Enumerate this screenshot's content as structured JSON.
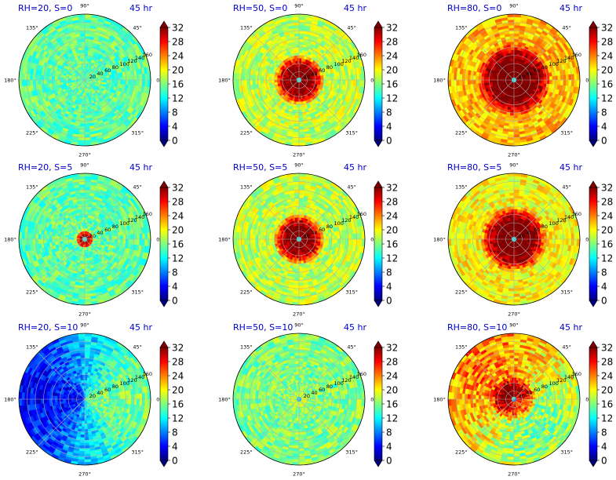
{
  "figure": {
    "panel_time_label": "45 hr",
    "angle_tick_labels": [
      "90°",
      "45°",
      "0°",
      "315°",
      "270°",
      "225°",
      "180°",
      "135°"
    ],
    "radial_tick_labels": [
      "20",
      "40",
      "60",
      "80",
      "100",
      "120",
      "140",
      "160"
    ],
    "colorbar_tick_labels": [
      "0",
      "4",
      "8",
      "12",
      "16",
      "20",
      "24",
      "28",
      "32"
    ],
    "colors": {
      "title_blue": "#0000cc",
      "jet": [
        "#00007f",
        "#0000ff",
        "#007fff",
        "#00ffff",
        "#7fff7f",
        "#ffff00",
        "#ff7f00",
        "#ff0000",
        "#7f0000"
      ]
    }
  },
  "chart_data": [
    {
      "type": "heatmap",
      "projection": "polar",
      "title": "RH=20, S=0",
      "time": "45 hr",
      "rlim": [
        0,
        160
      ],
      "clim": [
        0,
        32
      ],
      "colormap": "jet",
      "colorbar_extend": "both",
      "grid": true,
      "pattern": "weak broad field ~14-18, no organized core",
      "core_radius": 0,
      "core_value": 14,
      "ring_value": 14,
      "ring_width": 0,
      "background": 15,
      "noise": 3
    },
    {
      "type": "heatmap",
      "projection": "polar",
      "title": "RH=50, S=0",
      "time": "45 hr",
      "rlim": [
        0,
        160
      ],
      "clim": [
        0,
        32
      ],
      "colormap": "jet",
      "colorbar_extend": "both",
      "grid": true,
      "pattern": "intense core ring ~32 out to r≈60, clear eye",
      "core_radius": 8,
      "core_value": 12,
      "ring_value": 33,
      "ring_width": 55,
      "background": 18,
      "noise": 3
    },
    {
      "type": "heatmap",
      "projection": "polar",
      "title": "RH=80, S=0",
      "time": "45 hr",
      "rlim": [
        0,
        160
      ],
      "clim": [
        0,
        32
      ],
      "colormap": "jet",
      "colorbar_extend": "both",
      "grid": true,
      "pattern": "very large intense core ~32 out to r≈90, small eye",
      "core_radius": 7,
      "core_value": 12,
      "ring_value": 34,
      "ring_width": 85,
      "background": 22,
      "noise": 3
    },
    {
      "type": "heatmap",
      "projection": "polar",
      "title": "RH=20, S=5",
      "time": "45 hr",
      "rlim": [
        0,
        160
      ],
      "clim": [
        0,
        32
      ],
      "colormap": "jet",
      "colorbar_extend": "both",
      "grid": true,
      "pattern": "small ring ~28 near r≈15",
      "core_radius": 6,
      "core_value": 12,
      "ring_value": 30,
      "ring_width": 18,
      "background": 15,
      "noise": 3
    },
    {
      "type": "heatmap",
      "projection": "polar",
      "title": "RH=50, S=5",
      "time": "45 hr",
      "rlim": [
        0,
        160
      ],
      "clim": [
        0,
        32
      ],
      "colormap": "jet",
      "colorbar_extend": "both",
      "grid": true,
      "pattern": "strong core ~32 out to r≈60, elongated eye",
      "core_radius": 9,
      "core_value": 12,
      "ring_value": 33,
      "ring_width": 55,
      "background": 18,
      "noise": 3
    },
    {
      "type": "heatmap",
      "projection": "polar",
      "title": "RH=80, S=5",
      "time": "45 hr",
      "rlim": [
        0,
        160
      ],
      "clim": [
        0,
        32
      ],
      "colormap": "jet",
      "colorbar_extend": "both",
      "grid": true,
      "pattern": "large intense core ~32 out to r≈80",
      "core_radius": 7,
      "core_value": 12,
      "ring_value": 34,
      "ring_width": 75,
      "background": 20,
      "noise": 3
    },
    {
      "type": "heatmap",
      "projection": "polar",
      "title": "RH=20, S=10",
      "time": "45 hr",
      "rlim": [
        0,
        160
      ],
      "clim": [
        0,
        32
      ],
      "colormap": "jet",
      "colorbar_extend": "both",
      "grid": true,
      "pattern": "low values ~4-8 on west side, ~14 on east side",
      "core_radius": 0,
      "core_value": 8,
      "ring_value": 8,
      "ring_width": 0,
      "background": 10,
      "noise": 3
    },
    {
      "type": "heatmap",
      "projection": "polar",
      "title": "RH=50, S=10",
      "time": "45 hr",
      "rlim": [
        0,
        160
      ],
      "clim": [
        0,
        32
      ],
      "colormap": "jet",
      "colorbar_extend": "both",
      "grid": true,
      "pattern": "disorganized field ~16-20, low center",
      "core_radius": 8,
      "core_value": 10,
      "ring_value": 18,
      "ring_width": 20,
      "background": 16,
      "noise": 3
    },
    {
      "type": "heatmap",
      "projection": "polar",
      "title": "RH=80, S=10",
      "time": "45 hr",
      "rlim": [
        0,
        160
      ],
      "clim": [
        0,
        32
      ],
      "colormap": "jet",
      "colorbar_extend": "both",
      "grid": true,
      "pattern": "asymmetric strong ~28-32 band on west/north side",
      "core_radius": 10,
      "core_value": 10,
      "ring_value": 30,
      "ring_width": 45,
      "background": 20,
      "noise": 4
    }
  ]
}
